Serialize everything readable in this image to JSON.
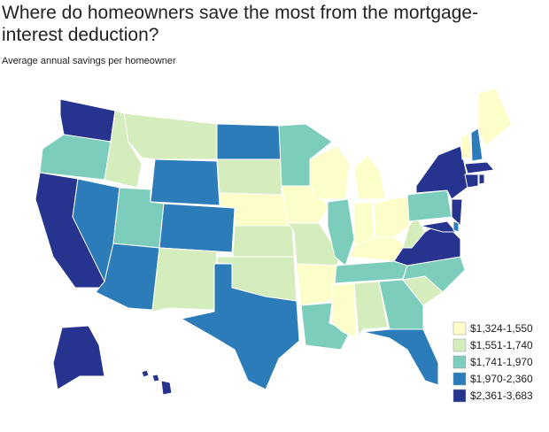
{
  "header": {
    "title": "Where do homeowners save the most from the mortgage-interest deduction?",
    "subtitle": "Average annual savings per homeowner"
  },
  "legend": {
    "items": [
      {
        "label": "$1,324-1,550",
        "color": "#fdfdc9"
      },
      {
        "label": "$1,551-1,740",
        "color": "#d5edbd"
      },
      {
        "label": "$1,741-1,970",
        "color": "#7dcdbd"
      },
      {
        "label": "$1,970-2,360",
        "color": "#2d7cba"
      },
      {
        "label": "$2,361-3,683",
        "color": "#26338f"
      }
    ]
  }
}
